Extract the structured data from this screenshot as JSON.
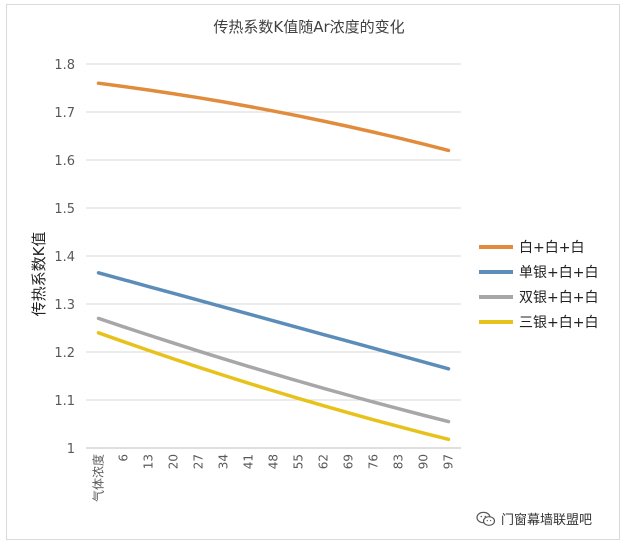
{
  "chart_data": {
    "type": "line",
    "title": "传热系数K值随Ar浓度的变化",
    "ylabel": "传热系数K值",
    "xlabel": "",
    "x_first_label": "气体浓度",
    "categories": [
      "气体浓度",
      "6",
      "13",
      "20",
      "27",
      "34",
      "41",
      "48",
      "55",
      "62",
      "69",
      "76",
      "83",
      "90",
      "97"
    ],
    "ylim": [
      1,
      1.8
    ],
    "yticks": [
      "1",
      "1.1",
      "1.2",
      "1.3",
      "1.4",
      "1.5",
      "1.6",
      "1.7",
      "1.8"
    ],
    "grid": true,
    "legend_position": "right",
    "series": [
      {
        "name": "白+白+白",
        "color": "#E08C3C",
        "start": 1.76,
        "end": 1.62,
        "curve": 0.012
      },
      {
        "name": "单银+白+白",
        "color": "#5B8DB8",
        "start": 1.365,
        "end": 1.165,
        "curve": 0.0
      },
      {
        "name": "双银+白+白",
        "color": "#A9A6AA",
        "start": 1.27,
        "end": 1.055,
        "curve": -0.008
      },
      {
        "name": "三银+白+白",
        "color": "#E8C21C",
        "start": 1.24,
        "end": 1.018,
        "curve": -0.01
      }
    ]
  },
  "watermark": {
    "text": "门窗幕墙联盟吧",
    "icon": "wechat-icon"
  }
}
